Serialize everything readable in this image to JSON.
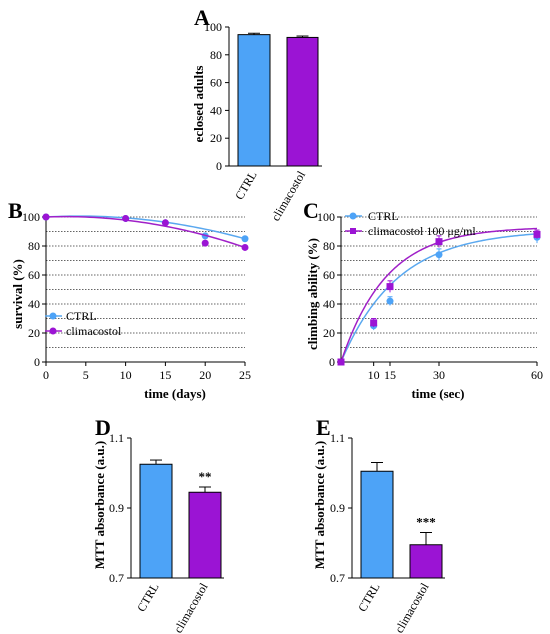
{
  "colors": {
    "ctrl": "#4da3f7",
    "climacostol": "#9b14d4",
    "ctrl_line": "#5aa8ef",
    "climacostol_line": "#a020c8"
  },
  "chart_data": [
    {
      "panel": "A",
      "type": "bar",
      "title": "",
      "ylabel": "eclosed adults",
      "xlabel": "",
      "categories": [
        "CTRL",
        "climacostol"
      ],
      "values": [
        94.5,
        92.5
      ],
      "errors": [
        1.0,
        1.0
      ],
      "ylim": [
        0,
        100
      ],
      "yticks": [
        "0",
        "20",
        "40",
        "60",
        "80",
        "100"
      ]
    },
    {
      "panel": "B",
      "type": "line",
      "title": "",
      "xlabel": "time (days)",
      "ylabel": "survival (%)",
      "xlim": [
        0,
        25
      ],
      "ylim": [
        0,
        100
      ],
      "xticks": [
        "0",
        "5",
        "10",
        "15",
        "20",
        "25"
      ],
      "yticks": [
        "0",
        "20",
        "40",
        "60",
        "80",
        "100"
      ],
      "grid": "horizontal dotted",
      "legend": "bottom-left",
      "series": [
        {
          "name": "CTRL",
          "x": [
            0,
            10,
            15,
            20,
            25
          ],
          "y": [
            100,
            99,
            96,
            87,
            85
          ]
        },
        {
          "name": "climacostol",
          "x": [
            0,
            10,
            15,
            20,
            25
          ],
          "y": [
            100,
            99,
            96,
            82,
            79
          ]
        }
      ]
    },
    {
      "panel": "C",
      "type": "scatter",
      "title": "",
      "xlabel": "time (sec)",
      "ylabel": "climbing ability (%)",
      "xlim": [
        0,
        60
      ],
      "ylim": [
        0,
        100
      ],
      "xticks": [
        "10",
        "15",
        "30",
        "60"
      ],
      "yticks": [
        "0",
        "20",
        "40",
        "60",
        "80",
        "100"
      ],
      "grid": "horizontal dotted",
      "legend": "top-left",
      "series": [
        {
          "name": "CTRL",
          "x": [
            0,
            10,
            15,
            30,
            60
          ],
          "y": [
            0,
            25,
            42,
            74,
            86
          ],
          "err": [
            0,
            3,
            3,
            4,
            4
          ]
        },
        {
          "name": "climacostol 100 μg/ml",
          "x": [
            0,
            10,
            15,
            30,
            60
          ],
          "y": [
            0,
            27,
            52,
            83,
            88
          ],
          "err": [
            0,
            3,
            4,
            4,
            3
          ]
        }
      ]
    },
    {
      "panel": "D",
      "type": "bar",
      "title": "",
      "ylabel": "MTT absorbance (a.u.)",
      "xlabel": "",
      "categories": [
        "CTRL",
        "climacostol"
      ],
      "values": [
        1.025,
        0.945
      ],
      "errors": [
        0.012,
        0.015
      ],
      "ylim": [
        0.7,
        1.1
      ],
      "yticks": [
        "0.7",
        "0.9",
        "1.1"
      ],
      "annotation": "**"
    },
    {
      "panel": "E",
      "type": "bar",
      "title": "",
      "ylabel": "MTT absorbance (a.u.)",
      "xlabel": "",
      "categories": [
        "CTRL",
        "climacostol"
      ],
      "values": [
        1.005,
        0.795
      ],
      "errors": [
        0.025,
        0.035
      ],
      "ylim": [
        0.7,
        1.1
      ],
      "yticks": [
        "0.7",
        "0.9",
        "1.1"
      ],
      "annotation": "***"
    }
  ]
}
